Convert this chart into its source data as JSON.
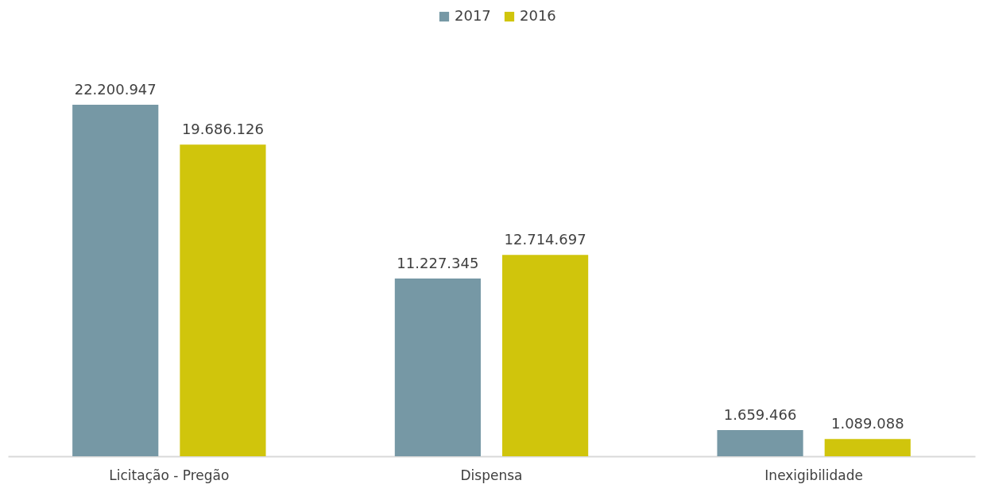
{
  "chart_data": {
    "type": "bar",
    "categories": [
      "Licitação - Pregão",
      "Dispensa",
      "Inexigibilidade"
    ],
    "series": [
      {
        "name": "2017",
        "color": "#7698a5",
        "values": [
          22200947,
          11227345,
          1659466
        ],
        "value_labels": [
          "22.200.947",
          "11.227.345",
          "1.659.466"
        ]
      },
      {
        "name": "2016",
        "color": "#d0c50c",
        "values": [
          19686126,
          12714697,
          1089088
        ],
        "value_labels": [
          "19.686.126",
          "12.714.697",
          "1.089.088"
        ]
      }
    ],
    "legend": "top",
    "grid": false
  }
}
